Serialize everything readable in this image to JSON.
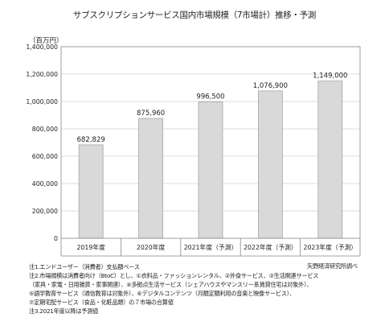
{
  "chart_data": {
    "type": "bar",
    "title": "サブスクリプションサービス国内市場規模（7市場計）推移・予測",
    "ylabel": "（百万円）",
    "xlabel": "",
    "categories": [
      "2019年度",
      "2020年度",
      "2021年度（予測）",
      "2022年度（予測）",
      "2023年度（予測）"
    ],
    "values": [
      682829,
      875960,
      996500,
      1076900,
      1149000
    ],
    "value_labels": [
      "682,829",
      "875,960",
      "996,500",
      "1,076,900",
      "1,149,000"
    ],
    "ylim": [
      0,
      1400000
    ],
    "yticks": [
      0,
      200000,
      400000,
      600000,
      800000,
      1000000,
      1200000,
      1400000
    ],
    "ytick_labels": [
      "0",
      "200,000",
      "400,000",
      "600,000",
      "800,000",
      "1,000,000",
      "1,200,000",
      "1,400,000"
    ],
    "grid": true,
    "bar_color": "#d9d9d9",
    "bar_edge_color": "#a6a6a6"
  },
  "notes": [
    "注1.エンドユーザー（消費者）支払額ベース",
    "注2.市場規模は消費者向け（BtoC）とし、①衣料品・ファッションレンタル、②外食サービス、③生活関連サービス",
    "（家具・家電・日用雑貨・家事関連）、④多拠点生活サービス（シェアハウスやマンスリー系賃貸住宅は対象外）、",
    "⑤語学教育サービス（通信教育は対象外）、⑥デジタルコンテンツ（月額定額利用の音楽と映像サービス）、",
    "⑦定期宅配サービス（食品・化粧品類）の７市場の合算値",
    "注3.2021年度以降は予測値"
  ],
  "source": "矢野経済研究所調べ"
}
